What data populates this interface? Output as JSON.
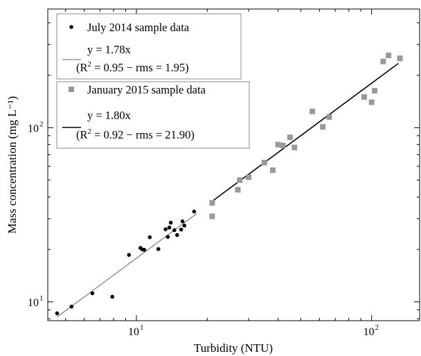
{
  "chart_data": {
    "type": "scatter",
    "x_scale": "log",
    "y_scale": "log",
    "xlabel": "Turbidity (NTU)",
    "ylabel": "Mass concentration (mg L⁻¹)",
    "xlim": [
      4.2,
      160
    ],
    "ylim": [
      7.8,
      480
    ],
    "grid": false,
    "legend_position": "top-left",
    "x_ticks": [
      {
        "value": 10,
        "base": "10",
        "exp": "1"
      },
      {
        "value": 100,
        "base": "10",
        "exp": "2"
      }
    ],
    "y_ticks": [
      {
        "value": 10,
        "base": "10",
        "exp": "1"
      },
      {
        "value": 100,
        "base": "10",
        "exp": "2"
      }
    ],
    "series": [
      {
        "name": "July 2014 sample data",
        "marker": "circle",
        "color": "#000000",
        "points": [
          [
            4.6,
            8.6
          ],
          [
            5.3,
            9.4
          ],
          [
            6.5,
            11.2
          ],
          [
            7.9,
            10.7
          ],
          [
            9.3,
            18.6
          ],
          [
            10.4,
            20.4
          ],
          [
            10.6,
            20.0
          ],
          [
            10.8,
            19.9
          ],
          [
            11.4,
            23.5
          ],
          [
            12.4,
            20.1
          ],
          [
            13.3,
            26.1
          ],
          [
            13.6,
            23.6
          ],
          [
            13.8,
            26.7
          ],
          [
            14.0,
            28.5
          ],
          [
            14.5,
            25.8
          ],
          [
            14.9,
            24.2
          ],
          [
            15.5,
            26.0
          ],
          [
            15.7,
            29.0
          ],
          [
            16.0,
            27.4
          ],
          [
            17.6,
            33.0
          ]
        ]
      },
      {
        "name": "January 2015 sample data",
        "marker": "square",
        "color": "#999999",
        "points": [
          [
            21,
            37
          ],
          [
            21,
            31
          ],
          [
            27,
            44
          ],
          [
            27.5,
            50
          ],
          [
            30,
            52
          ],
          [
            35,
            63
          ],
          [
            38,
            57
          ],
          [
            40,
            80
          ],
          [
            42,
            79
          ],
          [
            45,
            88
          ],
          [
            47,
            77
          ],
          [
            56,
            124
          ],
          [
            62,
            101
          ],
          [
            66,
            115
          ],
          [
            93,
            150
          ],
          [
            100,
            140
          ],
          [
            103,
            163
          ],
          [
            112,
            240
          ],
          [
            118,
            260
          ],
          [
            132,
            250
          ]
        ]
      }
    ],
    "fits": [
      {
        "name": "fit-july",
        "color": "#999999",
        "slope": 1.78,
        "x_range": [
          4.6,
          18
        ],
        "equation": "y = 1.78x",
        "stats_prefix": "(R",
        "stats_sup": "2",
        "stats_suffix": " = 0.95 − rms = 1.95)"
      },
      {
        "name": "fit-january",
        "color": "#000000",
        "slope": 1.8,
        "x_range": [
          21,
          130
        ],
        "equation": "y = 1.80x",
        "stats_prefix": "(R",
        "stats_sup": "2",
        "stats_suffix": " = 0.92 − rms = 21.90)"
      }
    ]
  }
}
